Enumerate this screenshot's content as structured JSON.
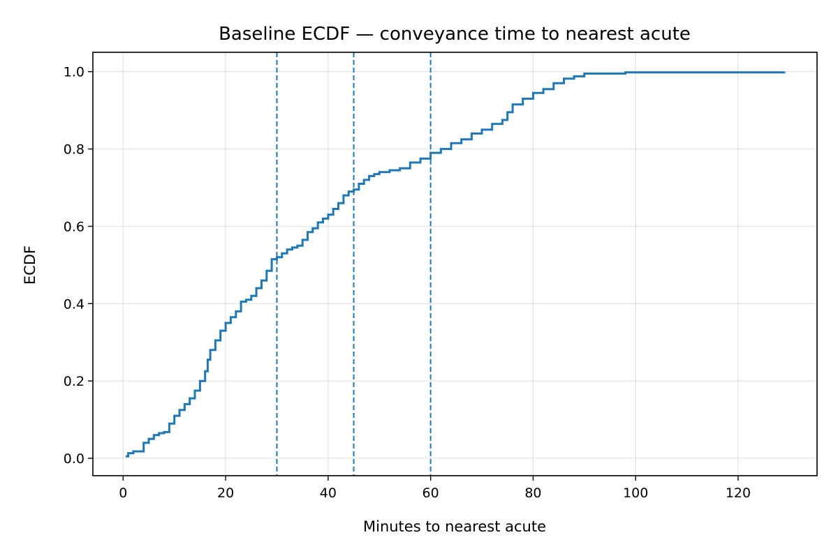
{
  "chart_data": {
    "type": "line",
    "title": "Baseline ECDF — conveyance time to nearest acute",
    "xlabel": "Minutes to nearest acute",
    "ylabel": "ECDF",
    "xlim": [
      -5.9,
      135.4
    ],
    "ylim": [
      -0.045,
      1.05
    ],
    "x_ticks": [
      0,
      20,
      40,
      60,
      80,
      100,
      120
    ],
    "y_ticks": [
      0.0,
      0.2,
      0.4,
      0.6,
      0.8,
      1.0
    ],
    "x_tick_labels": [
      "0",
      "20",
      "40",
      "60",
      "80",
      "100",
      "120"
    ],
    "y_tick_labels": [
      "0.0",
      "0.2",
      "0.4",
      "0.6",
      "0.8",
      "1.0"
    ],
    "grid": true,
    "line_color": "#1f77b4",
    "reference_lines_x": [
      30,
      45,
      60
    ],
    "series": [
      {
        "x": [
          0.5,
          1.0,
          2.0,
          3.5,
          4.0,
          5.0,
          6.0,
          7.0,
          8.0,
          9.0,
          10.0,
          11.0,
          12.0,
          13.0,
          14.0,
          15.0,
          16.0,
          16.5,
          17.0,
          18.0,
          19.0,
          20.0,
          21.0,
          22.0,
          23.0,
          24.0,
          25.0,
          26.0,
          27.0,
          28.0,
          29.0,
          30.0,
          31.0,
          32.0,
          33.0,
          34.0,
          35.0,
          36.0,
          37.0,
          38.0,
          39.0,
          40.0,
          41.0,
          42.0,
          43.0,
          44.0,
          45.0,
          46.0,
          47.0,
          48.0,
          49.0,
          50.0,
          52.0,
          54.0,
          56.0,
          58.0,
          60.0,
          62.0,
          64.0,
          66.0,
          68.0,
          70.0,
          72.0,
          74.0,
          75.0,
          76.0,
          78.0,
          80.0,
          82.0,
          84.0,
          86.0,
          88.0,
          90.0,
          98.0,
          129.0
        ],
        "y": [
          0.005,
          0.013,
          0.018,
          0.018,
          0.04,
          0.05,
          0.06,
          0.065,
          0.068,
          0.09,
          0.11,
          0.125,
          0.14,
          0.155,
          0.175,
          0.2,
          0.225,
          0.255,
          0.28,
          0.305,
          0.33,
          0.35,
          0.365,
          0.38,
          0.405,
          0.41,
          0.42,
          0.44,
          0.46,
          0.485,
          0.515,
          0.52,
          0.53,
          0.54,
          0.545,
          0.55,
          0.565,
          0.585,
          0.595,
          0.61,
          0.62,
          0.63,
          0.645,
          0.66,
          0.68,
          0.69,
          0.695,
          0.71,
          0.72,
          0.73,
          0.735,
          0.74,
          0.745,
          0.75,
          0.765,
          0.775,
          0.79,
          0.8,
          0.815,
          0.825,
          0.84,
          0.85,
          0.865,
          0.875,
          0.895,
          0.915,
          0.93,
          0.945,
          0.955,
          0.97,
          0.982,
          0.988,
          0.995,
          0.998,
          1.0
        ]
      }
    ]
  }
}
